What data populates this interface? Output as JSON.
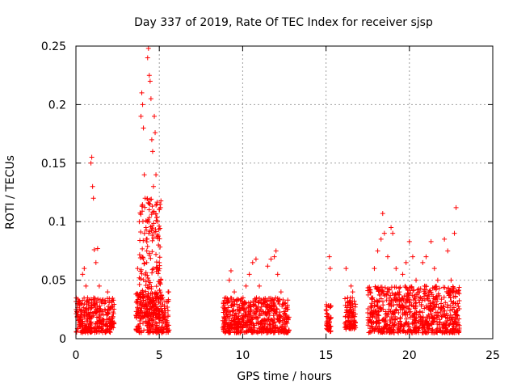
{
  "chart_data": {
    "type": "scatter",
    "title": "Day 337 of 2019, Rate Of TEC Index for receiver sjsp",
    "xlabel": "GPS time / hours",
    "ylabel": "ROTI / TECUs",
    "xlim": [
      0,
      25
    ],
    "ylim": [
      0,
      0.25
    ],
    "xticks": [
      0,
      5,
      10,
      15,
      20,
      25
    ],
    "yticks": [
      0,
      0.05,
      0.1,
      0.15,
      0.2,
      0.25
    ],
    "xtick_labels": [
      "0",
      "5",
      "10",
      "15",
      "20",
      "25"
    ],
    "ytick_labels": [
      "0",
      "0.05",
      "0.1",
      "0.15",
      "0.2",
      "0.25"
    ],
    "grid": true,
    "legend": "none",
    "marker": "plus",
    "color": "#ff0000",
    "series": [
      {
        "name": "ROTI",
        "points": [
          [
            0.2,
            0.012
          ],
          [
            0.3,
            0.03
          ],
          [
            0.4,
            0.055
          ],
          [
            0.5,
            0.06
          ],
          [
            0.6,
            0.045
          ],
          [
            0.7,
            0.035
          ],
          [
            0.8,
            0.02
          ],
          [
            0.9,
            0.15
          ],
          [
            0.95,
            0.155
          ],
          [
            1.0,
            0.13
          ],
          [
            1.05,
            0.12
          ],
          [
            1.1,
            0.076
          ],
          [
            1.2,
            0.065
          ],
          [
            1.3,
            0.077
          ],
          [
            1.4,
            0.045
          ],
          [
            1.5,
            0.02
          ],
          [
            1.7,
            0.03
          ],
          [
            1.9,
            0.04
          ],
          [
            2.0,
            0.025
          ],
          [
            2.2,
            0.015
          ],
          [
            0.6,
            0.01
          ],
          [
            1.2,
            0.013
          ],
          [
            1.8,
            0.012
          ],
          [
            3.6,
            0.02
          ],
          [
            3.7,
            0.06
          ],
          [
            3.8,
            0.1
          ],
          [
            3.9,
            0.19
          ],
          [
            3.95,
            0.21
          ],
          [
            4.0,
            0.2
          ],
          [
            4.05,
            0.18
          ],
          [
            4.1,
            0.14
          ],
          [
            4.15,
            0.12
          ],
          [
            4.2,
            0.095
          ],
          [
            4.25,
            0.075
          ],
          [
            4.3,
            0.24
          ],
          [
            4.35,
            0.248
          ],
          [
            4.4,
            0.225
          ],
          [
            4.45,
            0.22
          ],
          [
            4.5,
            0.205
          ],
          [
            4.55,
            0.17
          ],
          [
            4.6,
            0.16
          ],
          [
            4.65,
            0.13
          ],
          [
            4.7,
            0.19
          ],
          [
            4.75,
            0.176
          ],
          [
            4.8,
            0.14
          ],
          [
            4.85,
            0.115
          ],
          [
            4.9,
            0.1
          ],
          [
            4.95,
            0.08
          ],
          [
            5.0,
            0.065
          ],
          [
            5.1,
            0.05
          ],
          [
            5.2,
            0.035
          ],
          [
            5.3,
            0.02
          ],
          [
            4.2,
            0.015
          ],
          [
            4.6,
            0.012
          ],
          [
            5.0,
            0.014
          ],
          [
            8.9,
            0.015
          ],
          [
            9.0,
            0.035
          ],
          [
            9.2,
            0.05
          ],
          [
            9.3,
            0.058
          ],
          [
            9.5,
            0.04
          ],
          [
            9.7,
            0.025
          ],
          [
            10.0,
            0.03
          ],
          [
            10.2,
            0.045
          ],
          [
            10.4,
            0.055
          ],
          [
            10.6,
            0.065
          ],
          [
            10.8,
            0.068
          ],
          [
            11.0,
            0.045
          ],
          [
            11.2,
            0.03
          ],
          [
            11.5,
            0.062
          ],
          [
            11.7,
            0.068
          ],
          [
            11.9,
            0.07
          ],
          [
            12.0,
            0.075
          ],
          [
            12.1,
            0.055
          ],
          [
            12.3,
            0.04
          ],
          [
            12.5,
            0.03
          ],
          [
            12.6,
            0.02
          ],
          [
            9.6,
            0.012
          ],
          [
            10.5,
            0.014
          ],
          [
            11.8,
            0.013
          ],
          [
            15.1,
            0.01
          ],
          [
            15.15,
            0.02
          ],
          [
            15.2,
            0.07
          ],
          [
            15.25,
            0.06
          ],
          [
            16.2,
            0.06
          ],
          [
            16.3,
            0.035
          ],
          [
            16.4,
            0.02
          ],
          [
            16.5,
            0.045
          ],
          [
            16.6,
            0.04
          ],
          [
            16.7,
            0.015
          ],
          [
            17.6,
            0.015
          ],
          [
            17.8,
            0.035
          ],
          [
            17.9,
            0.06
          ],
          [
            18.1,
            0.075
          ],
          [
            18.3,
            0.085
          ],
          [
            18.4,
            0.107
          ],
          [
            18.5,
            0.09
          ],
          [
            18.7,
            0.07
          ],
          [
            18.9,
            0.095
          ],
          [
            19.0,
            0.09
          ],
          [
            19.2,
            0.06
          ],
          [
            19.4,
            0.04
          ],
          [
            19.6,
            0.055
          ],
          [
            19.8,
            0.065
          ],
          [
            20.0,
            0.083
          ],
          [
            20.2,
            0.07
          ],
          [
            20.4,
            0.05
          ],
          [
            20.6,
            0.04
          ],
          [
            20.8,
            0.065
          ],
          [
            21.0,
            0.07
          ],
          [
            21.3,
            0.083
          ],
          [
            21.5,
            0.06
          ],
          [
            21.7,
            0.05
          ],
          [
            21.9,
            0.03
          ],
          [
            22.1,
            0.085
          ],
          [
            22.3,
            0.075
          ],
          [
            22.5,
            0.05
          ],
          [
            22.7,
            0.09
          ],
          [
            22.8,
            0.112
          ],
          [
            22.9,
            0.03
          ],
          [
            18.0,
            0.013
          ],
          [
            19.5,
            0.012
          ],
          [
            21.0,
            0.014
          ],
          [
            22.4,
            0.012
          ]
        ]
      }
    ],
    "dense_bands": [
      {
        "x": [
          0.0,
          2.3
        ],
        "y": [
          0.005,
          0.035
        ]
      },
      {
        "x": [
          3.6,
          5.6
        ],
        "y": [
          0.005,
          0.04
        ]
      },
      {
        "x": [
          3.8,
          5.1
        ],
        "y": [
          0.02,
          0.12
        ]
      },
      {
        "x": [
          8.8,
          12.8
        ],
        "y": [
          0.005,
          0.035
        ]
      },
      {
        "x": [
          15.0,
          15.3
        ],
        "y": [
          0.005,
          0.03
        ]
      },
      {
        "x": [
          16.1,
          16.8
        ],
        "y": [
          0.008,
          0.035
        ]
      },
      {
        "x": [
          17.5,
          23.0
        ],
        "y": [
          0.005,
          0.045
        ]
      }
    ]
  }
}
